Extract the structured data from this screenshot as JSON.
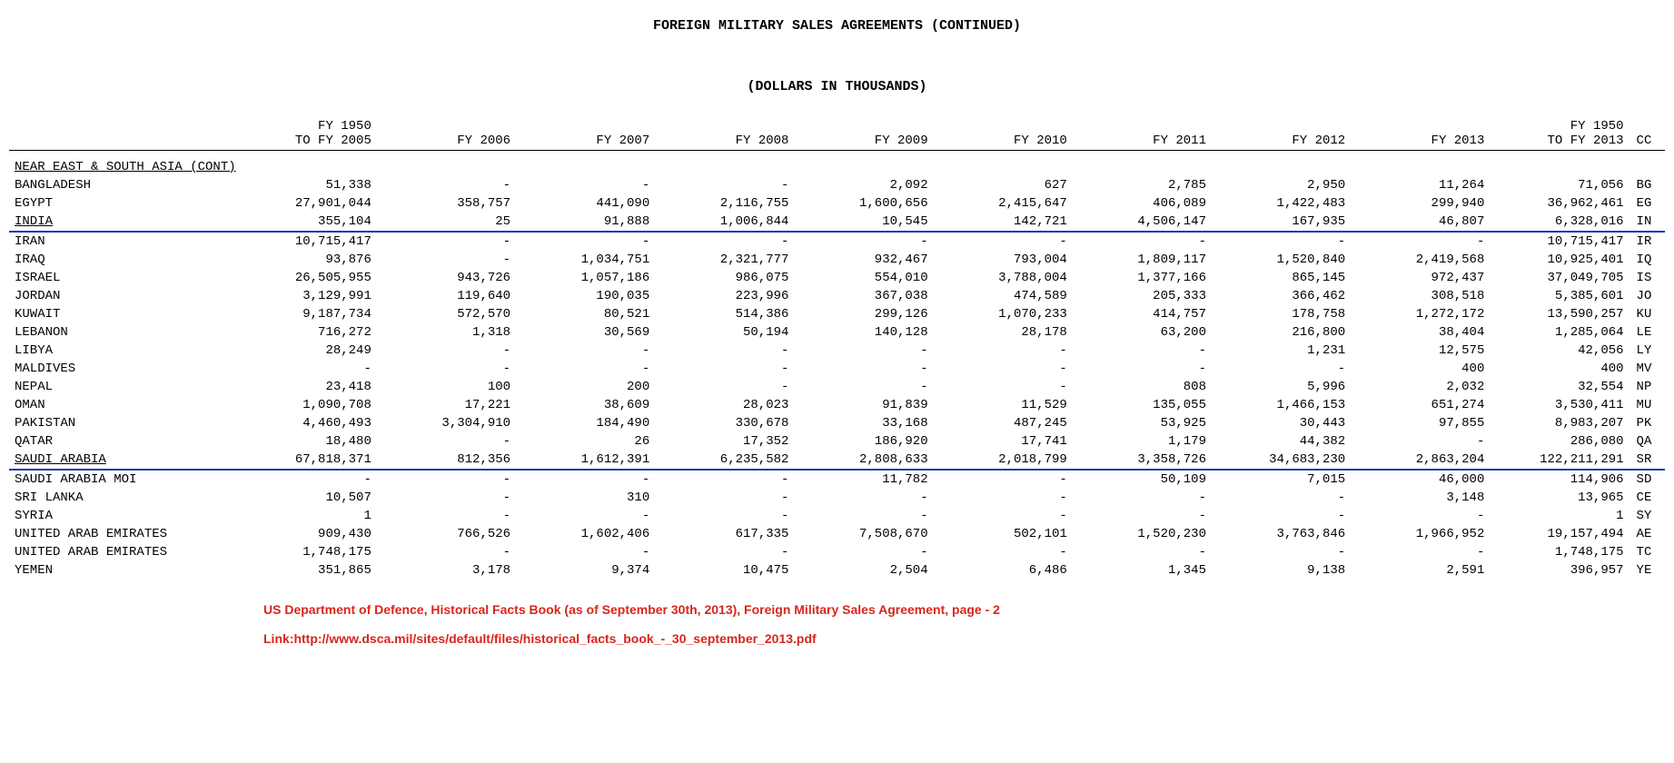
{
  "title": "FOREIGN MILITARY SALES AGREEMENTS (CONTINUED)",
  "subtitle": "(DOLLARS IN THOUSANDS)",
  "header_fy1950_label_line1": "FY 1950",
  "header_fy1950_label_line2": "TO FY 2005",
  "header_fy_labels": [
    "FY 2006",
    "FY 2007",
    "FY 2008",
    "FY 2009",
    "FY 2010",
    "FY 2011",
    "FY 2012",
    "FY 2013"
  ],
  "header_total_line1": "FY 1950",
  "header_total_line2": "TO FY 2013",
  "header_cc": "CC",
  "section": "NEAR EAST & SOUTH ASIA (CONT)",
  "rows": [
    {
      "country": "BANGLADESH",
      "v": [
        "51,338",
        "-",
        "-",
        "-",
        "2,092",
        "627",
        "2,785",
        "2,950",
        "11,264",
        "71,056"
      ],
      "cc": "BG"
    },
    {
      "country": "EGYPT",
      "v": [
        "27,901,044",
        "358,757",
        "441,090",
        "2,116,755",
        "1,600,656",
        "2,415,647",
        "406,089",
        "1,422,483",
        "299,940",
        "36,962,461"
      ],
      "cc": "EG"
    },
    {
      "country": "INDIA",
      "v": [
        "355,104",
        "25",
        "91,888",
        "1,006,844",
        "10,545",
        "142,721",
        "4,506,147",
        "167,935",
        "46,807",
        "6,328,016"
      ],
      "cc": "IN",
      "underline": true,
      "country_underline": true
    },
    {
      "country": "IRAN",
      "v": [
        "10,715,417",
        "-",
        "-",
        "-",
        "-",
        "-",
        "-",
        "-",
        "-",
        "10,715,417"
      ],
      "cc": "IR"
    },
    {
      "country": "IRAQ",
      "v": [
        "93,876",
        "-",
        "1,034,751",
        "2,321,777",
        "932,467",
        "793,004",
        "1,809,117",
        "1,520,840",
        "2,419,568",
        "10,925,401"
      ],
      "cc": "IQ"
    },
    {
      "country": "ISRAEL",
      "v": [
        "26,505,955",
        "943,726",
        "1,057,186",
        "986,075",
        "554,010",
        "3,788,004",
        "1,377,166",
        "865,145",
        "972,437",
        "37,049,705"
      ],
      "cc": "IS"
    },
    {
      "country": "JORDAN",
      "v": [
        "3,129,991",
        "119,640",
        "190,035",
        "223,996",
        "367,038",
        "474,589",
        "205,333",
        "366,462",
        "308,518",
        "5,385,601"
      ],
      "cc": "JO"
    },
    {
      "country": "KUWAIT",
      "v": [
        "9,187,734",
        "572,570",
        "80,521",
        "514,386",
        "299,126",
        "1,070,233",
        "414,757",
        "178,758",
        "1,272,172",
        "13,590,257"
      ],
      "cc": "KU"
    },
    {
      "country": "LEBANON",
      "v": [
        "716,272",
        "1,318",
        "30,569",
        "50,194",
        "140,128",
        "28,178",
        "63,200",
        "216,800",
        "38,404",
        "1,285,064"
      ],
      "cc": "LE"
    },
    {
      "country": "LIBYA",
      "v": [
        "28,249",
        "-",
        "-",
        "-",
        "-",
        "-",
        "-",
        "1,231",
        "12,575",
        "42,056"
      ],
      "cc": "LY"
    },
    {
      "country": "MALDIVES",
      "v": [
        "-",
        "-",
        "-",
        "-",
        "-",
        "-",
        "-",
        "-",
        "400",
        "400"
      ],
      "cc": "MV"
    },
    {
      "country": "NEPAL",
      "v": [
        "23,418",
        "100",
        "200",
        "-",
        "-",
        "-",
        "808",
        "5,996",
        "2,032",
        "32,554"
      ],
      "cc": "NP"
    },
    {
      "country": "OMAN",
      "v": [
        "1,090,708",
        "17,221",
        "38,609",
        "28,023",
        "91,839",
        "11,529",
        "135,055",
        "1,466,153",
        "651,274",
        "3,530,411"
      ],
      "cc": "MU"
    },
    {
      "country": "PAKISTAN",
      "v": [
        "4,460,493",
        "3,304,910",
        "184,490",
        "330,678",
        "33,168",
        "487,245",
        "53,925",
        "30,443",
        "97,855",
        "8,983,207"
      ],
      "cc": "PK"
    },
    {
      "country": "QATAR",
      "v": [
        "18,480",
        "-",
        "26",
        "17,352",
        "186,920",
        "17,741",
        "1,179",
        "44,382",
        "-",
        "286,080"
      ],
      "cc": "QA"
    },
    {
      "country": "SAUDI ARABIA",
      "v": [
        "67,818,371",
        "812,356",
        "1,612,391",
        "6,235,582",
        "2,808,633",
        "2,018,799",
        "3,358,726",
        "34,683,230",
        "2,863,204",
        "122,211,291"
      ],
      "cc": "SR",
      "underline": true,
      "country_underline": true
    },
    {
      "country": "SAUDI ARABIA MOI",
      "v": [
        "-",
        "-",
        "-",
        "-",
        "11,782",
        "-",
        "50,109",
        "7,015",
        "46,000",
        "114,906"
      ],
      "cc": "SD"
    },
    {
      "country": "SRI LANKA",
      "v": [
        "10,507",
        "-",
        "310",
        "-",
        "-",
        "-",
        "-",
        "-",
        "3,148",
        "13,965"
      ],
      "cc": "CE"
    },
    {
      "country": "SYRIA",
      "v": [
        "1",
        "-",
        "-",
        "-",
        "-",
        "-",
        "-",
        "-",
        "-",
        "1"
      ],
      "cc": "SY"
    },
    {
      "country": "UNITED ARAB EMIRATES",
      "v": [
        "909,430",
        "766,526",
        "1,602,406",
        "617,335",
        "7,508,670",
        "502,101",
        "1,520,230",
        "3,763,846",
        "1,966,952",
        "19,157,494"
      ],
      "cc": "AE"
    },
    {
      "country": "UNITED ARAB EMIRATES",
      "v": [
        "1,748,175",
        "-",
        "-",
        "-",
        "-",
        "-",
        "-",
        "-",
        "-",
        "1,748,175"
      ],
      "cc": "TC"
    },
    {
      "country": "YEMEN",
      "v": [
        "351,865",
        "3,178",
        "9,374",
        "10,475",
        "2,504",
        "6,486",
        "1,345",
        "9,138",
        "2,591",
        "396,957"
      ],
      "cc": "YE"
    }
  ],
  "footer_source": "US Department of Defence, Historical Facts Book (as of September 30th, 2013), Foreign Military Sales Agreement, page - 2",
  "footer_link_label": "Link:",
  "footer_link_url": "http://www.dsca.mil/sites/default/files/historical_facts_book_-_30_september_2013.pdf",
  "highlight_color": "#1436c4",
  "footer_text_color": "#d9261c"
}
